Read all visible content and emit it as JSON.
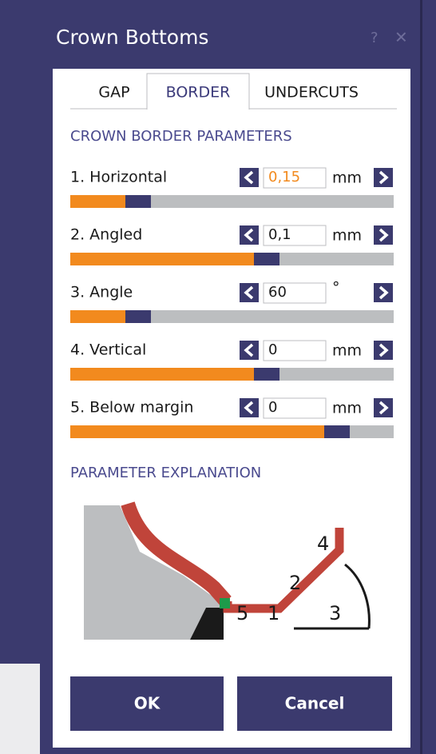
{
  "title": "Crown Bottoms",
  "help": "?",
  "close": "✕",
  "tabs": [
    "GAP",
    "BORDER",
    "UNDERCUTS"
  ],
  "sections": {
    "parameters": "CROWN BORDER PARAMETERS",
    "explanation": "PARAMETER EXPLANATION"
  },
  "params": [
    {
      "label": "1. Horizontal",
      "value": "0,15",
      "unit": "mm"
    },
    {
      "label": "2. Angled",
      "value": "0,1",
      "unit": "mm"
    },
    {
      "label": "3. Angle",
      "value": "60",
      "unit": "°"
    },
    {
      "label": "4. Vertical",
      "value": "0",
      "unit": "mm"
    },
    {
      "label": "5. Below margin",
      "value": "0",
      "unit": "mm"
    }
  ],
  "diagram_labels": [
    "1",
    "2",
    "3",
    "4",
    "5"
  ],
  "buttons": [
    "OK",
    "Cancel"
  ]
}
